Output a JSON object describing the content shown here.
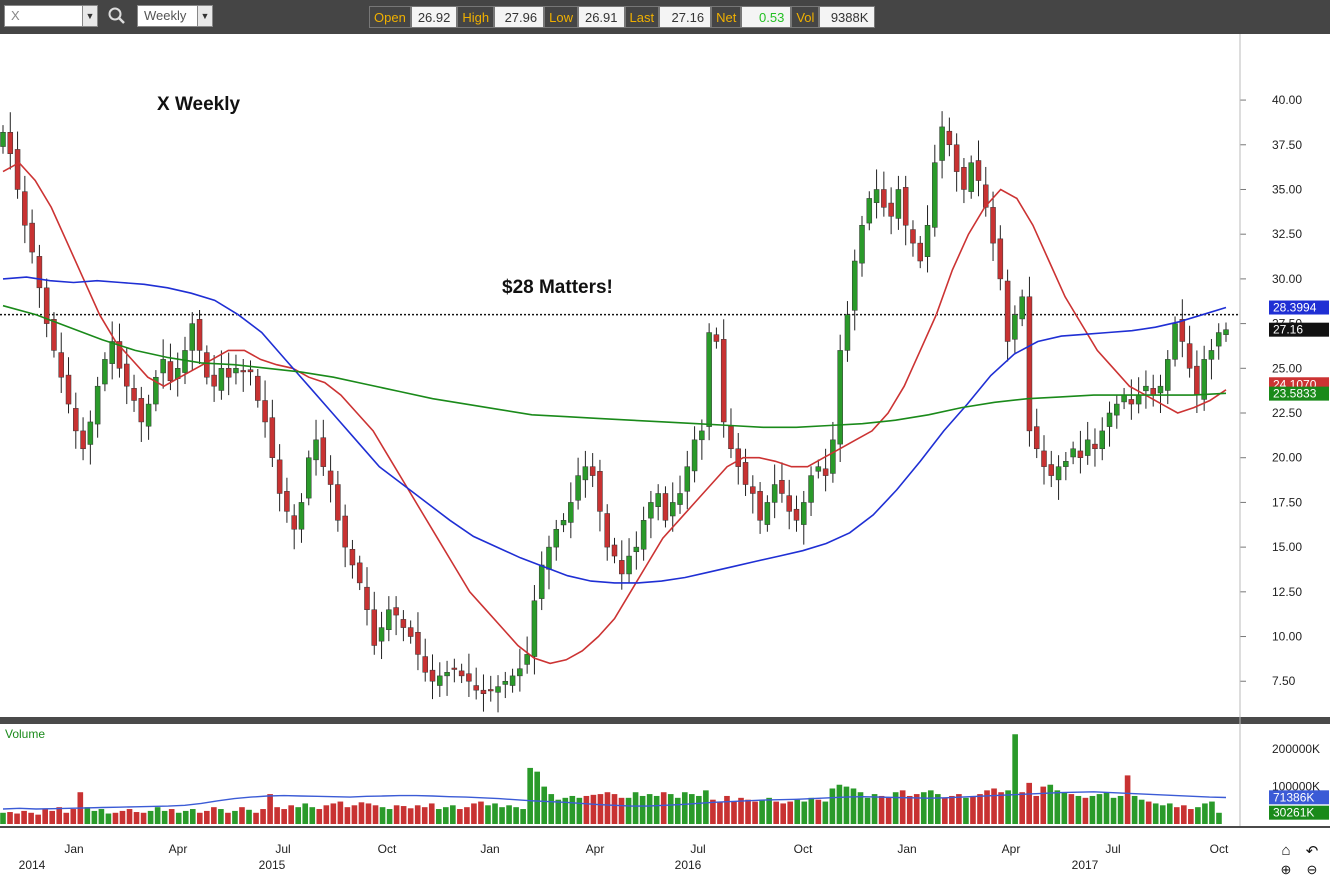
{
  "toolbar": {
    "symbol": "X",
    "period": "Weekly",
    "quote": [
      {
        "label": "Open",
        "value": "26.92"
      },
      {
        "label": "High",
        "value": "27.96"
      },
      {
        "label": "Low",
        "value": "26.91"
      },
      {
        "label": "Last",
        "value": "27.16"
      },
      {
        "label": "Net",
        "value": "0.53"
      },
      {
        "label": "Vol",
        "value": "9388K"
      }
    ],
    "icons": [
      "chevron-down-icon",
      "search-icon",
      "chevron-down-icon"
    ]
  },
  "colors": {
    "up": "#2a9a2a",
    "down": "#c83232",
    "ma_fast": "#cc3333",
    "ma_mid": "#1f2fd4",
    "ma_slow": "#1a8a1a",
    "net_value": "#22c022"
  },
  "chart_data": [
    {
      "type": "candlestick",
      "title": "X Weekly",
      "annotation": "$28 Matters!",
      "reference_line": 28,
      "ylim": [
        5.5,
        42.8
      ],
      "y_ticks": [
        "40.00",
        "37.50",
        "35.00",
        "32.50",
        "30.00",
        "27.50",
        "25.00",
        "22.50",
        "20.00",
        "17.50",
        "15.00",
        "12.50",
        "10.00",
        "7.50"
      ],
      "x_ticks": [
        "2014",
        "Jan",
        "Apr",
        "Jul",
        "2015",
        "Oct",
        "Jan",
        "Apr",
        "Jul",
        "2016",
        "Oct",
        "Jan",
        "Apr",
        "Jul",
        "2017",
        "Oct"
      ],
      "price_tags": [
        "28.3994",
        "27.16",
        "24.1070",
        "23.5833"
      ],
      "series": [
        {
          "name": "price",
          "values": [
            38.2,
            37.0,
            35.0,
            33.0,
            31.5,
            29.5,
            27.5,
            26.0,
            24.5,
            23.0,
            21.5,
            20.5,
            22.0,
            24.0,
            25.5,
            26.5,
            25.0,
            24.0,
            23.2,
            22.0,
            23.0,
            24.5,
            25.5,
            24.3,
            25.0,
            26.0,
            27.5,
            26.0,
            24.5,
            24.0,
            25.0,
            24.5,
            25.0,
            24.8,
            24.8,
            23.2,
            22.0,
            20.0,
            18.0,
            17.0,
            16.0,
            17.5,
            20.0,
            21.0,
            19.5,
            18.5,
            16.5,
            15.0,
            14.0,
            13.0,
            11.5,
            9.5,
            10.5,
            11.5,
            11.2,
            10.5,
            10.0,
            9.0,
            8.0,
            7.5,
            7.8,
            8.0,
            8.2,
            7.8,
            7.5,
            7.0,
            6.8,
            7.0,
            7.2,
            7.5,
            7.8,
            8.2,
            9.0,
            12.0,
            14.0,
            15.0,
            16.0,
            16.5,
            17.5,
            19.0,
            19.5,
            19.0,
            17.0,
            15.0,
            14.5,
            13.5,
            14.5,
            15.0,
            16.5,
            17.5,
            18.0,
            16.5,
            17.5,
            18.0,
            19.5,
            21.0,
            21.5,
            27.0,
            26.5,
            22.0,
            20.5,
            19.5,
            18.5,
            18.0,
            16.5,
            17.5,
            18.5,
            18.0,
            17.0,
            16.5,
            17.5,
            19.0,
            19.5,
            19.0,
            21.0,
            26.0,
            28.0,
            31.0,
            33.0,
            34.5,
            35.0,
            34.0,
            33.5,
            35.0,
            33.0,
            32.0,
            31.0,
            33.0,
            36.5,
            38.5,
            37.5,
            36.0,
            35.0,
            36.5,
            35.5,
            34.0,
            32.0,
            30.0,
            26.5,
            28.0,
            29.0,
            21.5,
            20.5,
            19.5,
            19.0,
            19.5,
            19.8,
            20.5,
            20.0,
            21.0,
            20.5,
            21.5,
            22.5,
            23.0,
            23.5,
            23.0,
            23.5,
            24.0,
            23.5,
            24.0,
            25.5,
            27.5,
            26.5,
            25.0,
            23.5,
            25.5,
            26.0,
            27.0,
            27.16
          ]
        },
        {
          "name": "",
          "values": [
            36.0,
            36.5,
            35.5,
            34.0,
            32.0,
            30.0,
            28.0,
            26.5,
            25.5,
            24.5,
            24.0,
            24.5,
            25.0,
            25.5,
            26.0,
            26.0,
            25.5,
            25.2,
            25.0,
            24.5,
            24.2,
            23.5,
            22.5,
            21.5,
            20.0,
            18.5,
            17.0,
            15.5,
            14.0,
            12.5,
            11.5,
            10.5,
            9.5,
            8.8,
            8.5,
            8.7,
            9.2,
            10.0,
            11.0,
            12.5,
            14.0,
            15.5,
            16.5,
            17.5,
            18.5,
            19.5,
            20.0,
            20.0,
            19.8,
            19.5,
            19.5,
            20.0,
            20.5,
            21.0,
            21.5,
            22.5,
            24.0,
            26.0,
            28.0,
            30.5,
            32.5,
            34.0,
            35.0,
            34.5,
            33.0,
            31.0,
            29.0,
            27.5,
            26.0,
            25.0,
            24.0,
            23.5,
            23.0,
            22.5,
            22.8,
            23.2,
            23.8
          ]
        },
        {
          "name": "",
          "values": [
            30.0,
            30.1,
            29.9,
            29.8,
            29.9,
            29.8,
            29.7,
            29.5,
            29.2,
            28.8,
            28.0,
            27.0,
            25.5,
            24.0,
            22.5,
            21.0,
            19.5,
            18.5,
            17.5,
            16.5,
            15.6,
            15.0,
            14.4,
            13.9,
            13.4,
            13.1,
            13.0,
            13.0,
            13.1,
            13.3,
            13.6,
            13.9,
            14.2,
            14.5,
            14.8,
            15.2,
            15.8,
            16.8,
            18.2,
            19.8,
            21.5,
            23.0,
            24.6,
            25.8,
            26.5,
            26.8,
            26.9,
            27.0,
            27.1,
            27.3,
            27.6,
            28.0,
            28.4
          ]
        },
        {
          "name": "",
          "values": [
            28.5,
            28.0,
            27.3,
            26.6,
            26.0,
            25.6,
            25.3,
            25.2,
            25.0,
            24.8,
            24.5,
            24.1,
            23.7,
            23.3,
            23.0,
            22.7,
            22.4,
            22.3,
            22.2,
            22.1,
            22.0,
            21.9,
            21.8,
            21.7,
            21.7,
            21.8,
            21.9,
            22.1,
            22.4,
            22.8,
            23.1,
            23.3,
            23.4,
            23.5,
            23.5,
            23.5,
            23.5,
            23.6
          ]
        }
      ]
    },
    {
      "type": "bar",
      "title": "Volume",
      "ylim": [
        0,
        230000
      ],
      "y_ticks": [
        "200000K",
        "100000K"
      ],
      "value_tags": [
        "71386K",
        "30261K"
      ],
      "series": [
        {
          "name": "Volume",
          "values": [
            30,
            32,
            28,
            35,
            30,
            25,
            40,
            35,
            45,
            30,
            40,
            85,
            45,
            35,
            40,
            28,
            30,
            35,
            40,
            32,
            30,
            35,
            45,
            35,
            40,
            30,
            35,
            40,
            30,
            35,
            45,
            40,
            30,
            35,
            45,
            38,
            30,
            40,
            80,
            45,
            40,
            50,
            45,
            55,
            45,
            40,
            50,
            55,
            60,
            45,
            50,
            58,
            55,
            50,
            45,
            40,
            50,
            48,
            42,
            50,
            45,
            55,
            40,
            45,
            50,
            40,
            45,
            55,
            60,
            50,
            55,
            45,
            50,
            45,
            40,
            150,
            140,
            100,
            80,
            65,
            70,
            75,
            70,
            75,
            78,
            80,
            85,
            80,
            70,
            70,
            85,
            75,
            80,
            75,
            85,
            80,
            70,
            85,
            80,
            75,
            90,
            65,
            60,
            75,
            60,
            70,
            65,
            60,
            65,
            70,
            60,
            55,
            60,
            65,
            60,
            70,
            65,
            60,
            95,
            105,
            100,
            95,
            85,
            70,
            80,
            75,
            70,
            85,
            90,
            75,
            80,
            85,
            90,
            80,
            70,
            75,
            80,
            70,
            75,
            80,
            90,
            95,
            85,
            90,
            240,
            85,
            110,
            75,
            100,
            105,
            90,
            85,
            80,
            75,
            70,
            75,
            80,
            85,
            70,
            75,
            130,
            75,
            65,
            60,
            55,
            50,
            55,
            45,
            50,
            40,
            45,
            55,
            60,
            30
          ]
        },
        {
          "name": "",
          "values": [
            40,
            42,
            40,
            41,
            42,
            43,
            44,
            45,
            46,
            47,
            48,
            50,
            55,
            62,
            68,
            72,
            75,
            76,
            75,
            74,
            73,
            72,
            74,
            75,
            76,
            76,
            75,
            73,
            72,
            70,
            68,
            65,
            62,
            60,
            58,
            55,
            52,
            50,
            48,
            48,
            50,
            52,
            55,
            58,
            60,
            62,
            64,
            65,
            66,
            68,
            70,
            72,
            73,
            72,
            71,
            70,
            69,
            70,
            72,
            74,
            76,
            78,
            80,
            82,
            84,
            85,
            86,
            84,
            82,
            80,
            78,
            76,
            74,
            72,
            71
          ]
        }
      ]
    }
  ]
}
